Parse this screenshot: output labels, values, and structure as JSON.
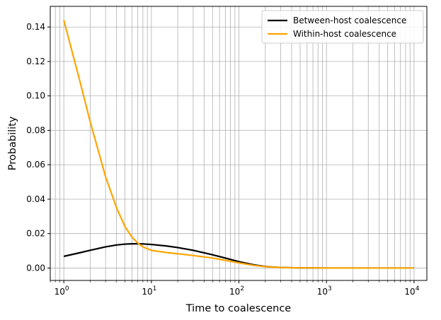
{
  "chart_data": {
    "type": "line",
    "xlabel": "Time to coalescence",
    "ylabel": "Probability",
    "xscale": "log",
    "xlim": [
      0.7,
      14000
    ],
    "ylim": [
      -0.0072,
      0.152
    ],
    "grid": "on",
    "legend_position": "top-right",
    "x_ticks": [
      {
        "value": 1,
        "base": "10",
        "exp": "0"
      },
      {
        "value": 10,
        "base": "10",
        "exp": "1"
      },
      {
        "value": 100,
        "base": "10",
        "exp": "2"
      },
      {
        "value": 1000,
        "base": "10",
        "exp": "3"
      },
      {
        "value": 10000,
        "base": "10",
        "exp": "4"
      }
    ],
    "y_ticks": [
      {
        "value": 0.0,
        "label": "0.00"
      },
      {
        "value": 0.02,
        "label": "0.02"
      },
      {
        "value": 0.04,
        "label": "0.04"
      },
      {
        "value": 0.06,
        "label": "0.06"
      },
      {
        "value": 0.08,
        "label": "0.08"
      },
      {
        "value": 0.1,
        "label": "0.10"
      },
      {
        "value": 0.12,
        "label": "0.12"
      },
      {
        "value": 0.14,
        "label": "0.14"
      }
    ],
    "series": [
      {
        "name": "Between-host coalescence",
        "color": "#000000",
        "x": [
          1,
          1.5,
          2,
          3,
          4,
          5,
          6,
          7,
          8,
          10,
          15,
          20,
          30,
          50,
          70,
          100,
          150,
          200,
          300,
          500,
          1000,
          3000,
          10000
        ],
        "y": [
          0.0068,
          0.0088,
          0.0103,
          0.0123,
          0.0134,
          0.0139,
          0.0141,
          0.0141,
          0.014,
          0.0137,
          0.0128,
          0.0119,
          0.0103,
          0.0077,
          0.0058,
          0.0037,
          0.0018,
          0.0009,
          0.0003,
          0.0001,
          0.0,
          0.0,
          0.0
        ]
      },
      {
        "name": "Within-host coalescence",
        "color": "#FFA500",
        "x": [
          1,
          1.5,
          2,
          3,
          4,
          5,
          6,
          7,
          8,
          10,
          15,
          20,
          30,
          50,
          70,
          100,
          150,
          200,
          300,
          500,
          1000,
          3000,
          10000
        ],
        "y": [
          0.144,
          0.11,
          0.085,
          0.053,
          0.035,
          0.024,
          0.018,
          0.0145,
          0.0123,
          0.0103,
          0.009,
          0.0083,
          0.0073,
          0.0058,
          0.0045,
          0.003,
          0.0015,
          0.0008,
          0.0003,
          0.0001,
          0.0,
          0.0,
          0.0
        ]
      }
    ]
  }
}
